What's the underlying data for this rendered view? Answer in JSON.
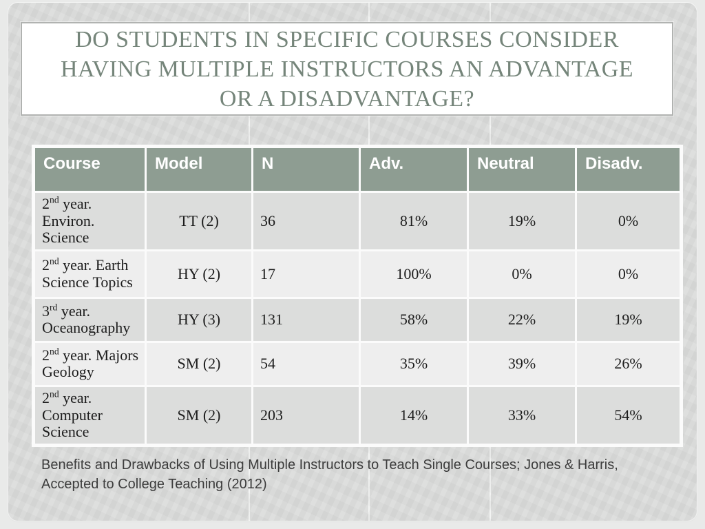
{
  "slide": {
    "title_lines": [
      "DO STUDENTS IN SPECIFIC COURSES CONSIDER",
      "HAVING MULTIPLE INSTRUCTORS AN ADVANTAGE",
      "OR A DISADVANTAGE?"
    ],
    "citation_lines": [
      "Benefits and Drawbacks of Using Multiple Instructors to Teach Single Courses;  Jones & Harris,",
      "Accepted to College Teaching (2012)"
    ]
  },
  "table": {
    "headers": [
      "Course",
      "Model",
      "N",
      "Adv.",
      "Neutral",
      "Disadv."
    ],
    "rows": [
      {
        "course_num": "2",
        "course_sup": "nd",
        "course_rest": " year. Environ. Science",
        "model": "TT (2)",
        "n": "36",
        "adv": "81%",
        "neutral": "19%",
        "disadv": "0%"
      },
      {
        "course_num": "2",
        "course_sup": "nd",
        "course_rest": " year. Earth Science Topics",
        "model": "HY (2)",
        "n": "17",
        "adv": "100%",
        "neutral": "0%",
        "disadv": "0%"
      },
      {
        "course_num": "3",
        "course_sup": "rd",
        "course_rest": " year. Oceanography",
        "model": "HY (3)",
        "n": "131",
        "adv": "58%",
        "neutral": "22%",
        "disadv": "19%"
      },
      {
        "course_num": "2",
        "course_sup": "nd",
        "course_rest": " year. Majors Geology",
        "model": "SM (2)",
        "n": "54",
        "adv": "35%",
        "neutral": "39%",
        "disadv": "26%"
      },
      {
        "course_num": "2",
        "course_sup": "nd",
        "course_rest": " year. Computer Science",
        "model": "SM (2)",
        "n": "203",
        "adv": "14%",
        "neutral": "33%",
        "disadv": "54%"
      }
    ]
  },
  "colors": {
    "panel_bg": "#dbdcdb",
    "header_bg": "#8e9d92",
    "row_odd_bg": "#dcdddc",
    "row_even_bg": "#eeeeee",
    "title_text": "#75857a",
    "title_border": "#b1b3b1"
  }
}
